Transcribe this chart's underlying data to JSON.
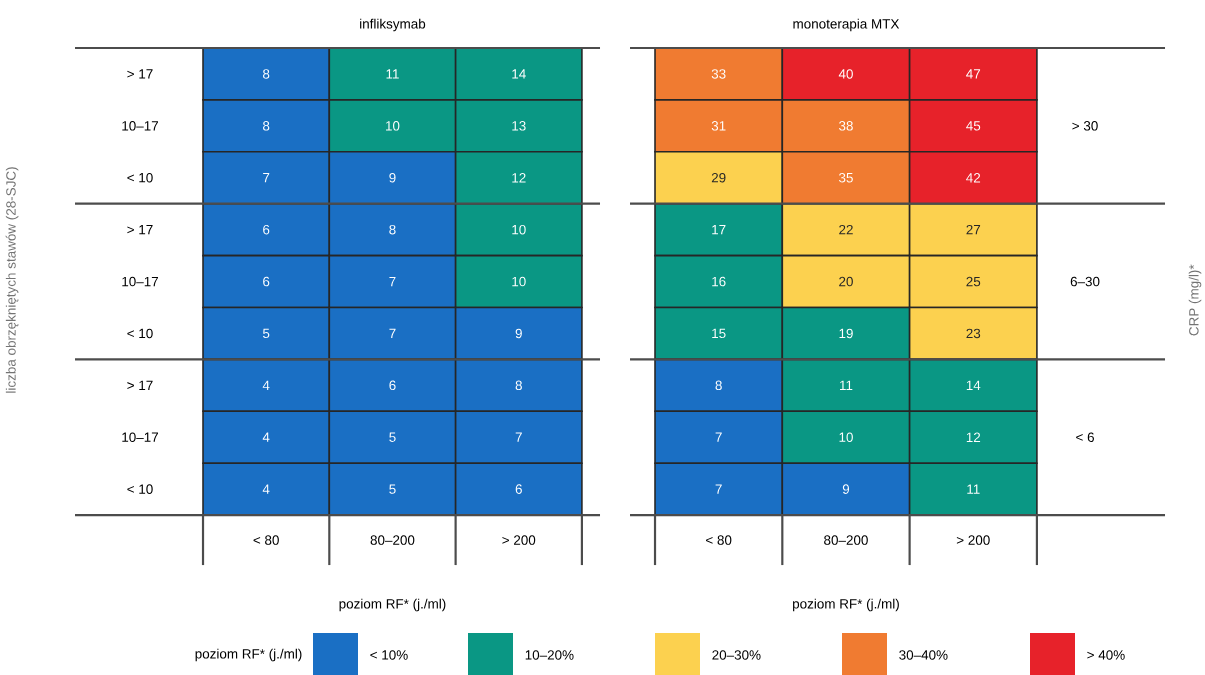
{
  "chart_data": [
    {
      "type": "heatmap",
      "title": "infliksymab",
      "xlabel": "poziom RF*  (j./ml)",
      "ylabel": "liczba obrzękniętych stawów (28-SJC)",
      "categories": [
        "< 80",
        "80–200",
        "> 200"
      ],
      "y_categories": [
        "> 17",
        "10–17",
        "< 10",
        "> 17",
        "10–17",
        "< 10",
        "> 17",
        "10–17",
        "< 10"
      ],
      "cells": [
        [
          8,
          11,
          14
        ],
        [
          8,
          10,
          13
        ],
        [
          7,
          9,
          12
        ],
        [
          6,
          8,
          10
        ],
        [
          6,
          7,
          10
        ],
        [
          5,
          7,
          9
        ],
        [
          4,
          6,
          8
        ],
        [
          4,
          5,
          7
        ],
        [
          4,
          5,
          6
        ]
      ],
      "data_labels": true
    },
    {
      "type": "heatmap",
      "title": "monoterapia MTX",
      "xlabel": "poziom RF*  (j./ml)",
      "y2label": "CRP (mg/l)*",
      "categories": [
        "< 80",
        "80–200",
        "> 200"
      ],
      "y_categories": [
        null,
        null,
        null,
        null,
        null,
        null,
        null,
        null,
        null
      ],
      "y2_categories": [
        null,
        "> 30",
        null,
        null,
        "6–30",
        null,
        null,
        "< 6",
        null
      ],
      "cells": [
        [
          33,
          40,
          47
        ],
        [
          31,
          38,
          45
        ],
        [
          29,
          35,
          42
        ],
        [
          17,
          22,
          27
        ],
        [
          16,
          20,
          25
        ],
        [
          15,
          19,
          23
        ],
        [
          8,
          11,
          14
        ],
        [
          7,
          10,
          12
        ],
        [
          7,
          9,
          11
        ]
      ],
      "data_labels": true
    },
    {
      "type": "other",
      "legend_title": "poziom RF*  (j./ml)",
      "categories": [
        "< 10%",
        "10–20%",
        "20–30%",
        "30–40%",
        "> 40%"
      ],
      "colors": [
        "#1a6fc4",
        "#0a9784",
        "#fcd14f",
        "#f07b31",
        "#e7222a"
      ]
    }
  ]
}
